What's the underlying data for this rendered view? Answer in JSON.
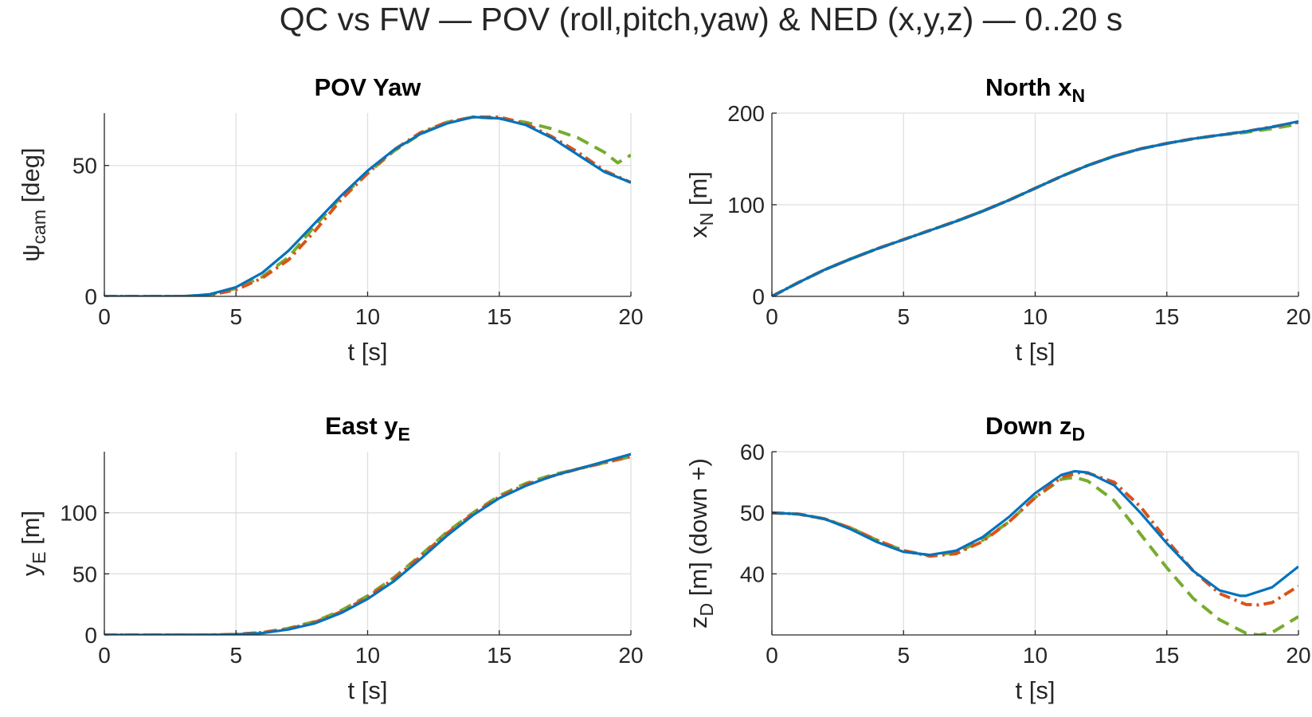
{
  "figure": {
    "title": "QC vs FW — POV (roll,pitch,yaw) & NED (x,y,z) — 0..20 s"
  },
  "series_colors": [
    "#77ac30",
    "#d95319",
    "#0072bd"
  ],
  "chart_data": [
    {
      "id": "yaw",
      "type": "line",
      "title": {
        "main": "POV Yaw",
        "sub": ""
      },
      "xlabel": "t [s]",
      "ylabel": {
        "main": "ψ",
        "sub": "cam",
        "suffix": " [deg]"
      },
      "xlim": [
        0,
        20
      ],
      "ylim": [
        0,
        70
      ],
      "xticks": [
        0,
        5,
        10,
        15,
        20
      ],
      "yticks": [
        0,
        50
      ],
      "grid": true,
      "series": [
        {
          "style": "dashed",
          "color": "#77ac30",
          "x": [
            0,
            3,
            4,
            5,
            6,
            7,
            8,
            9,
            10,
            11,
            12,
            13,
            14,
            15,
            16,
            17,
            18,
            19,
            19.5,
            20
          ],
          "y": [
            0,
            0,
            0.6,
            3,
            7.5,
            15,
            27,
            38,
            47,
            55.5,
            62,
            66.5,
            68.5,
            68,
            66.5,
            64,
            60.5,
            55,
            51,
            54
          ]
        },
        {
          "style": "dashdot",
          "color": "#d95319",
          "x": [
            0,
            3,
            4,
            5,
            6,
            7,
            8,
            9,
            10,
            11,
            12,
            13,
            14,
            15,
            16,
            17,
            18,
            19,
            20
          ],
          "y": [
            0,
            0,
            0.5,
            2.5,
            7,
            14,
            25,
            37,
            47,
            56,
            62.5,
            66.5,
            68.5,
            68.5,
            66,
            61,
            55,
            48,
            43.5
          ]
        },
        {
          "style": "solid",
          "color": "#0072bd",
          "x": [
            0,
            3,
            4,
            5,
            6,
            7,
            8,
            9,
            10,
            11,
            12,
            13,
            14,
            15,
            16,
            17,
            18,
            19,
            20
          ],
          "y": [
            0,
            0,
            0.8,
            3.5,
            9,
            17.5,
            28,
            38.5,
            48,
            56,
            62,
            66,
            68.5,
            68,
            65.5,
            60.5,
            54,
            47.5,
            43.5
          ]
        }
      ]
    },
    {
      "id": "north",
      "type": "line",
      "title": {
        "main": "North x",
        "sub": "N"
      },
      "xlabel": "t [s]",
      "ylabel": {
        "main": "x",
        "sub": "N",
        "suffix": " [m]"
      },
      "xlim": [
        0,
        20
      ],
      "ylim": [
        0,
        200
      ],
      "xticks": [
        0,
        5,
        10,
        15,
        20
      ],
      "yticks": [
        0,
        100,
        200
      ],
      "grid": true,
      "series": [
        {
          "style": "dashed",
          "color": "#77ac30",
          "x": [
            0,
            1,
            2,
            3,
            4,
            5,
            6,
            7,
            8,
            9,
            10,
            11,
            12,
            13,
            14,
            15,
            16,
            17,
            18,
            19,
            20
          ],
          "y": [
            0,
            15,
            29,
            41,
            52,
            62,
            72,
            82,
            93,
            105,
            118,
            131,
            143,
            153,
            161,
            167,
            172,
            176,
            179,
            183,
            188
          ]
        },
        {
          "style": "dashdot",
          "color": "#d95319",
          "x": [
            0,
            1,
            2,
            3,
            4,
            5,
            6,
            7,
            8,
            9,
            10,
            11,
            12,
            13,
            14,
            15,
            16,
            17,
            18,
            19,
            20
          ],
          "y": [
            0,
            15,
            29,
            41,
            52,
            62,
            72,
            82,
            93,
            105,
            118,
            131,
            143,
            153,
            161,
            167,
            172,
            176,
            180,
            185,
            190
          ]
        },
        {
          "style": "solid",
          "color": "#0072bd",
          "x": [
            0,
            1,
            2,
            3,
            4,
            5,
            6,
            7,
            8,
            9,
            10,
            11,
            12,
            13,
            14,
            15,
            16,
            17,
            18,
            19,
            20
          ],
          "y": [
            0,
            15,
            29,
            41,
            52,
            62,
            72,
            82,
            93,
            105,
            118,
            131,
            143,
            153,
            161,
            167,
            172,
            176,
            180,
            185,
            191
          ]
        }
      ]
    },
    {
      "id": "east",
      "type": "line",
      "title": {
        "main": "East y",
        "sub": "E"
      },
      "xlabel": "t [s]",
      "ylabel": {
        "main": "y",
        "sub": "E",
        "suffix": " [m]"
      },
      "xlim": [
        0,
        20
      ],
      "ylim": [
        0,
        150
      ],
      "xticks": [
        0,
        5,
        10,
        15,
        20
      ],
      "yticks": [
        0,
        50,
        100
      ],
      "grid": true,
      "series": [
        {
          "style": "dashed",
          "color": "#77ac30",
          "x": [
            0,
            4,
            5,
            6,
            7,
            8,
            9,
            10,
            11,
            12,
            13,
            14,
            15,
            16,
            17,
            18,
            19,
            20
          ],
          "y": [
            0,
            0,
            0.5,
            2,
            5.5,
            11,
            20,
            32,
            47,
            65,
            84,
            100,
            114,
            124,
            131,
            136,
            141,
            146
          ]
        },
        {
          "style": "dashdot",
          "color": "#d95319",
          "x": [
            0,
            4,
            5,
            6,
            7,
            8,
            9,
            10,
            11,
            12,
            13,
            14,
            15,
            16,
            17,
            18,
            19,
            20
          ],
          "y": [
            0,
            0,
            0.5,
            2,
            5,
            10.5,
            19,
            31,
            46,
            64,
            83,
            99,
            113,
            123,
            130,
            136,
            141,
            146
          ]
        },
        {
          "style": "solid",
          "color": "#0072bd",
          "x": [
            0,
            4,
            5,
            6,
            7,
            8,
            9,
            10,
            11,
            12,
            13,
            14,
            15,
            16,
            17,
            18,
            19,
            20
          ],
          "y": [
            0,
            0,
            0.5,
            1.5,
            4.5,
            9.5,
            18,
            29.5,
            44,
            62,
            81,
            98,
            112,
            122,
            130,
            136,
            142,
            148
          ]
        }
      ]
    },
    {
      "id": "down",
      "type": "line",
      "title": {
        "main": "Down z",
        "sub": "D"
      },
      "xlabel": "t [s]",
      "ylabel": {
        "main": "z",
        "sub": "D",
        "suffix": " [m] (down +)"
      },
      "xlim": [
        0,
        20
      ],
      "ylim": [
        30,
        60
      ],
      "xticks": [
        0,
        5,
        10,
        15,
        20
      ],
      "yticks": [
        40,
        50,
        60
      ],
      "grid": true,
      "series": [
        {
          "style": "dashed",
          "color": "#77ac30",
          "x": [
            0,
            1,
            2,
            3,
            4,
            5,
            6,
            7,
            8,
            9,
            10,
            11,
            11.5,
            12,
            13,
            14,
            15,
            16,
            17,
            18,
            18.5,
            19,
            20
          ],
          "y": [
            50,
            49.8,
            49,
            47.5,
            45.5,
            43.8,
            43,
            43.5,
            45.5,
            48.5,
            52.5,
            55.5,
            55.8,
            55.2,
            52,
            46.5,
            41,
            36,
            32.5,
            30.3,
            30,
            30.4,
            33
          ]
        },
        {
          "style": "dashdot",
          "color": "#d95319",
          "x": [
            0,
            1,
            2,
            3,
            4,
            5,
            6,
            7,
            8,
            9,
            10,
            11,
            11.7,
            12,
            13,
            14,
            15,
            16,
            17,
            18,
            18.5,
            19,
            20
          ],
          "y": [
            50,
            49.8,
            49,
            47.5,
            45.5,
            43.8,
            42.9,
            43.3,
            45.3,
            48.5,
            52.5,
            55.8,
            56.6,
            56.5,
            55,
            51,
            45.5,
            40.5,
            36.8,
            35,
            34.9,
            35.3,
            38
          ]
        },
        {
          "style": "solid",
          "color": "#0072bd",
          "x": [
            0,
            1,
            2,
            3,
            4,
            5,
            6,
            7,
            8,
            9,
            10,
            11,
            11.5,
            12,
            13,
            14,
            15,
            16,
            17,
            17.8,
            18,
            19,
            20
          ],
          "y": [
            50,
            49.8,
            49,
            47.3,
            45.2,
            43.6,
            43.1,
            43.8,
            46,
            49.3,
            53.2,
            56.2,
            56.8,
            56.6,
            54.5,
            50,
            45,
            40.5,
            37.3,
            36.4,
            36.4,
            37.8,
            41.2
          ]
        }
      ]
    }
  ]
}
